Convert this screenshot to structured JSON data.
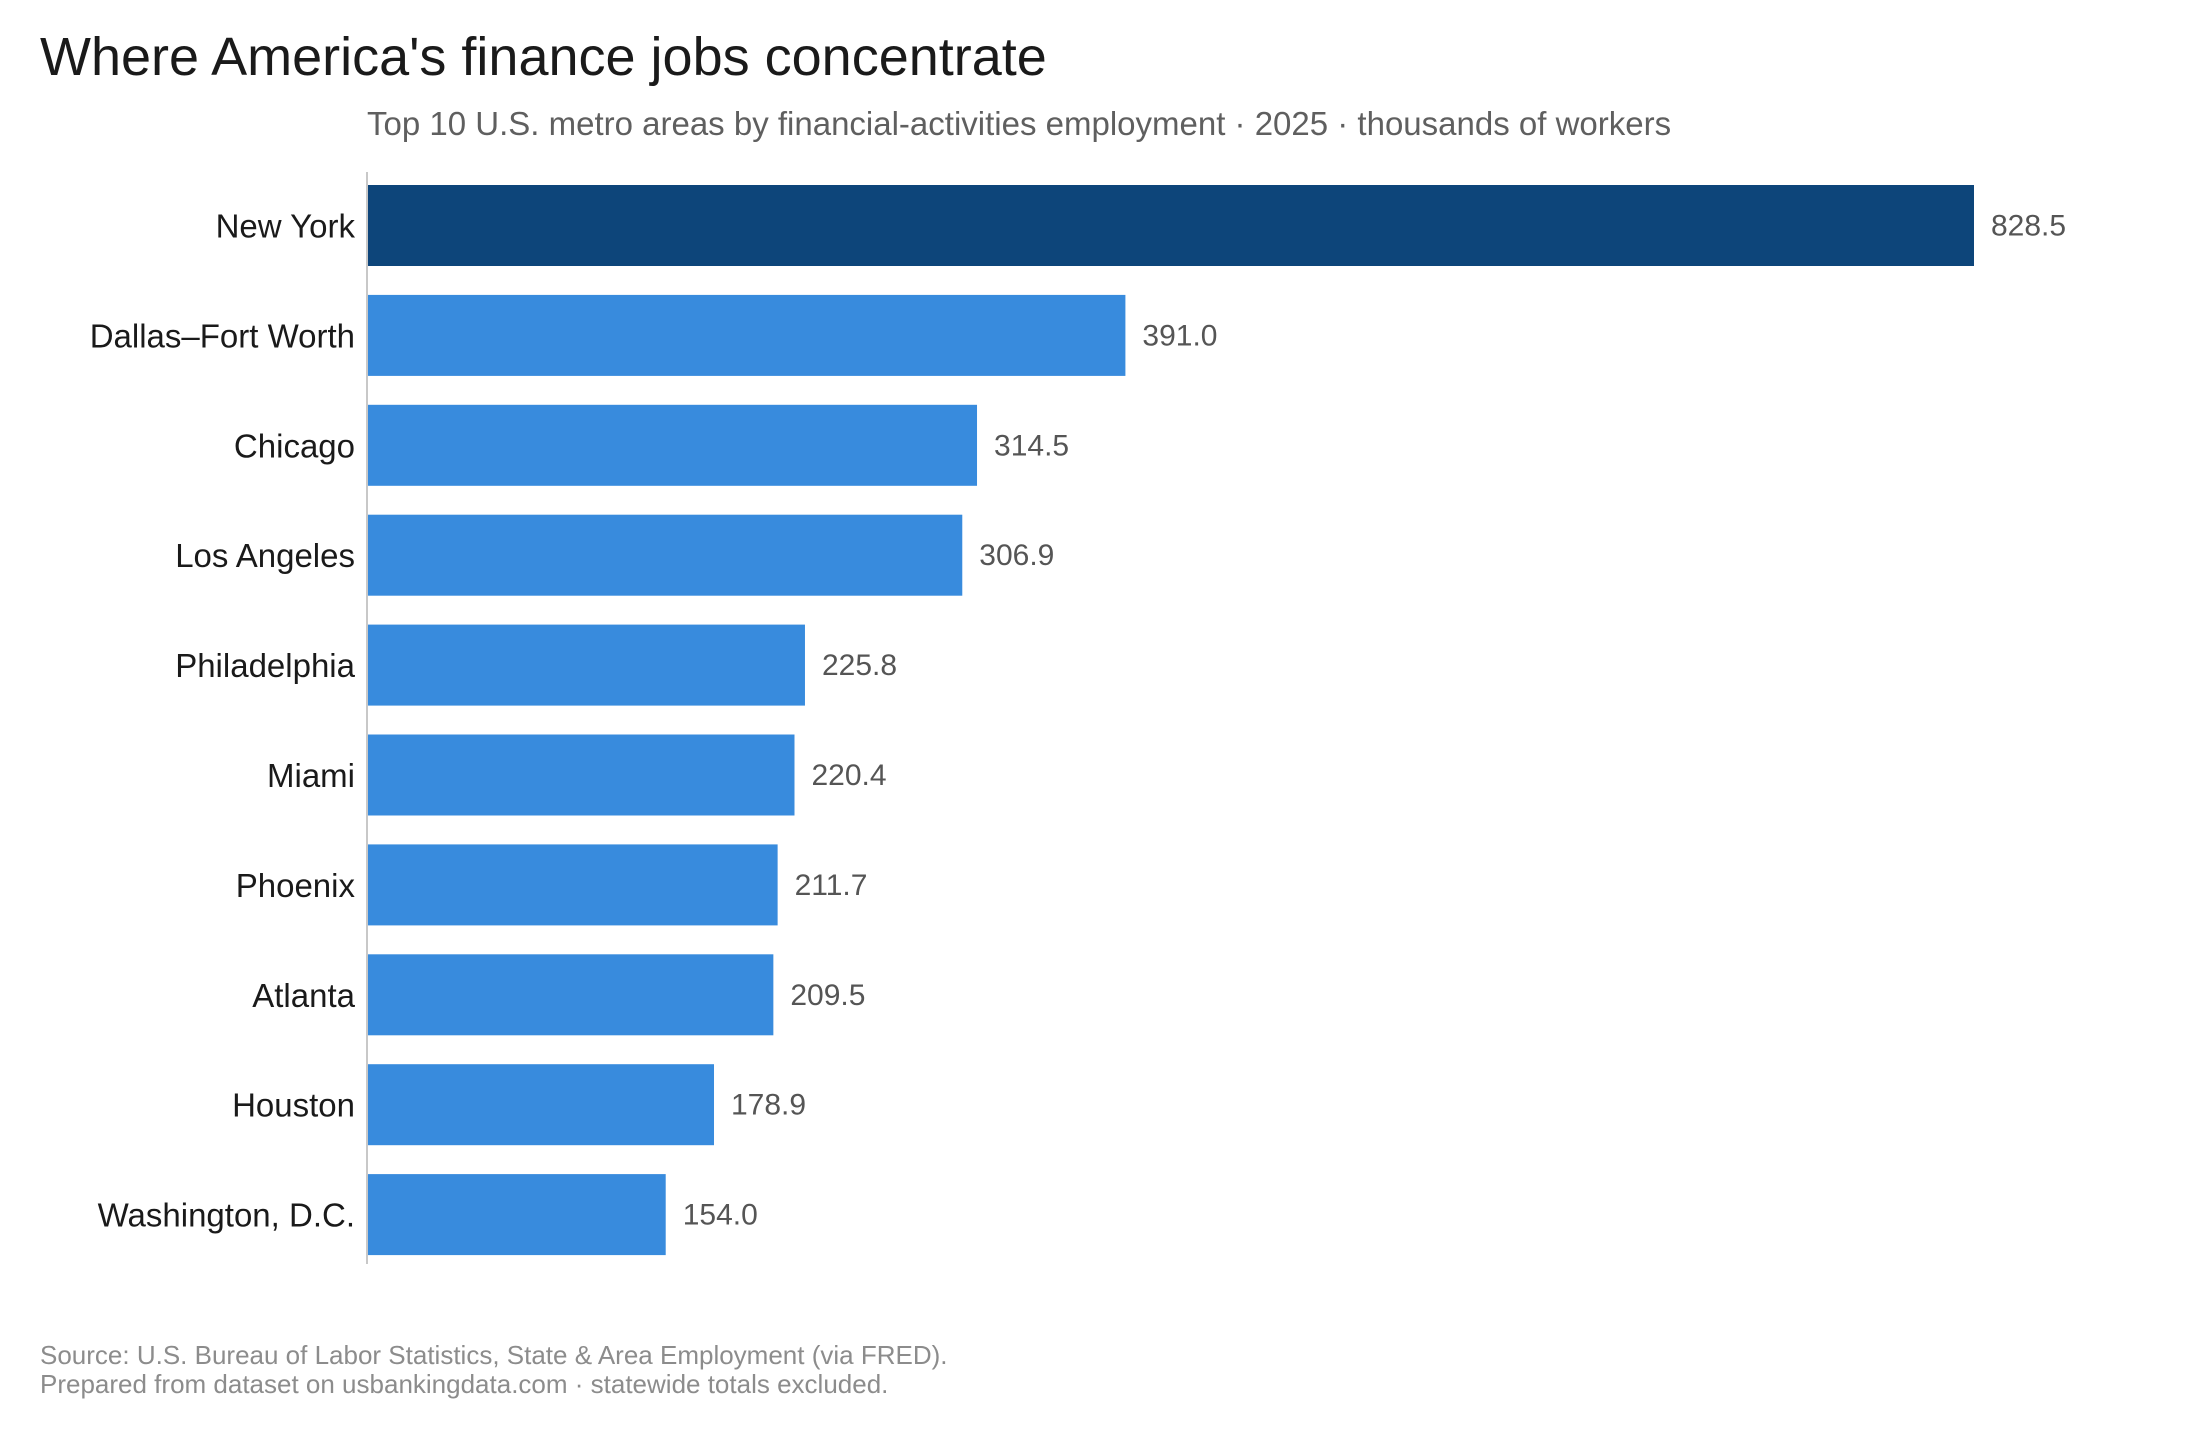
{
  "title": "Where America's finance jobs concentrate",
  "subtitle": "Top 10 U.S. metro areas by financial-activities employment · 2025 · thousands of workers",
  "footnote": {
    "line1": "Source: U.S. Bureau of Labor Statistics, State & Area Employment (via FRED).",
    "line2": "Prepared from dataset on usbankingdata.com · statewide totals excluded."
  },
  "colors": {
    "highlight": "#0d457a",
    "bar": "#388bdd",
    "axis": "#c8c8c8"
  },
  "chart_data": {
    "type": "bar",
    "orientation": "horizontal",
    "title": "Where America's finance jobs concentrate",
    "subtitle": "Top 10 U.S. metro areas by financial-activities employment · 2025 · thousands of workers",
    "categories": [
      "New York",
      "Dallas–Fort Worth",
      "Chicago",
      "Los Angeles",
      "Philadelphia",
      "Miami",
      "Phoenix",
      "Atlanta",
      "Houston",
      "Washington, D.C."
    ],
    "values": [
      828.5,
      391.0,
      314.5,
      306.9,
      225.8,
      220.4,
      211.7,
      209.5,
      178.9,
      154.0
    ],
    "value_labels": [
      "828.5",
      "391.0",
      "314.5",
      "306.9",
      "225.8",
      "220.4",
      "211.7",
      "209.5",
      "178.9",
      "154.0"
    ],
    "highlighted_category": "New York",
    "xlim": [
      0,
      828.5
    ],
    "grid": false,
    "legend": "none"
  }
}
